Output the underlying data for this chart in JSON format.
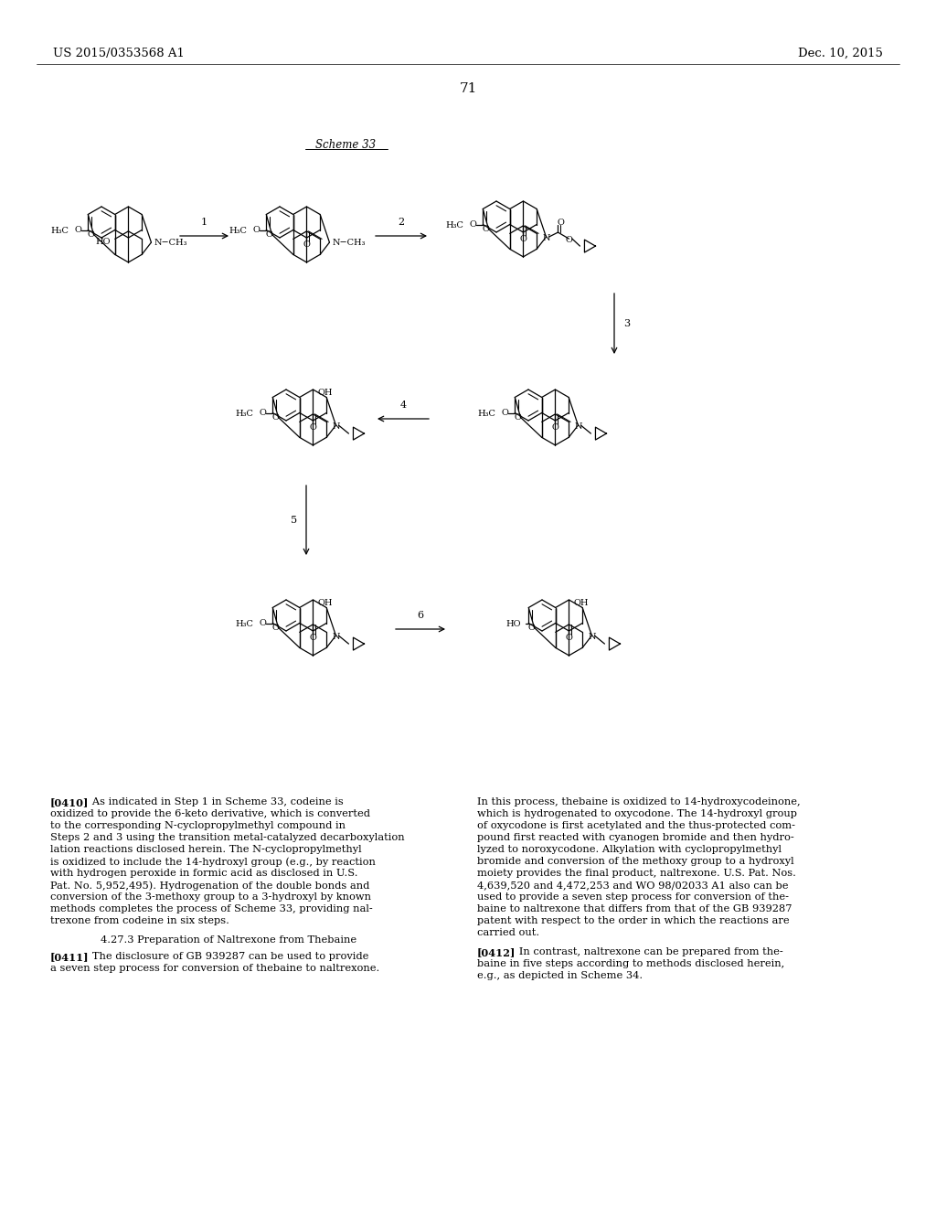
{
  "left_header": "US 2015/0353568 A1",
  "right_header": "Dec. 10, 2015",
  "page_number": "71",
  "scheme_label": "Scheme 33",
  "background": "#ffffff",
  "text_color": "#000000",
  "para_0410": "[0410] As indicated in Step 1 in Scheme 33, codeine is oxidized to provide the 6-keto derivative, which is converted to the corresponding N-cyclopropylmethyl compound in Steps 2 and 3 using the transition metal-catalyzed decarboxylation reactions disclosed herein. The N-cyclopropylmethyl is oxidized to include the 14-hydroxyl group (e.g., by reaction with hydrogen peroxide in formic acid as disclosed in U.S. Pat. No. 5,952,495). Hydrogenation of the double bonds and conversion of the 3-methoxy group to a 3-hydroxyl by known methods completes the process of Scheme 33, providing naltrexone from codeine in six steps.",
  "para_section": "4.27.3 Preparation of Naltrexone from Thebaine",
  "para_0411": "[0411] The disclosure of GB 939287 can be used to provide a seven step process for conversion of thebaine to naltrexone.",
  "para_right_1": "In this process, thebaine is oxidized to 14-hydroxycodeinone, which is hydrogenated to oxycodone. The 14-hydroxyl group of oxycodone is first acetylated and the thus-protected compound first reacted with cyanogen bromide and then hydrolyzed to noroxycodone. Alkylation with cyclopropylmethyl bromide and conversion of the methoxy group to a hydroxyl moiety provides the final product, naltrexone. U.S. Pat. Nos. 4,639,520 and 4,472,253 and WO 98/02033 A1 also can be used to provide a seven step process for conversion of thebaine to naltrexone that differs from that of the GB 939287 patent with respect to the order in which the reactions are carried out.",
  "para_0412": "[0412] In contrast, naltrexone can be prepared from thebaine in five steps according to methods disclosed herein, e.g., as depicted in Scheme 34."
}
